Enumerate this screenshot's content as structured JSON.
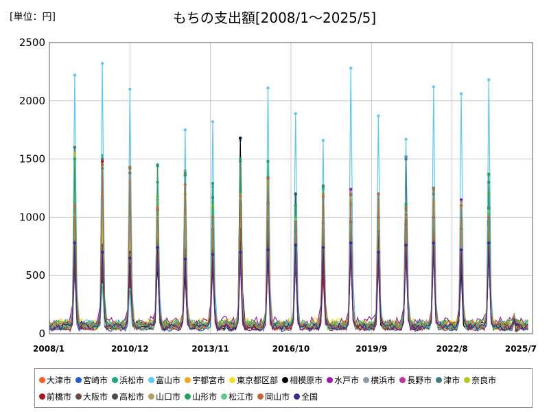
{
  "chart_data": {
    "type": "line",
    "title": "もちの支出額[2008/1～2025/5]",
    "unit_label": "[単位：円]",
    "ylim": [
      0,
      2500
    ],
    "yticks": [
      "0",
      "500",
      "1000",
      "1500",
      "2000",
      "2500"
    ],
    "xticks": [
      "2008/1",
      "2010/12",
      "2013/11",
      "2016/10",
      "2019/9",
      "2022/8",
      "2025/7"
    ],
    "grid": true,
    "legend_position": "bottom",
    "series": [
      {
        "name": "大津市",
        "color": "#ff5a1f",
        "peaks": [
          1200,
          1460,
          880,
          1070,
          750,
          860,
          730,
          800,
          920,
          1160,
          1200,
          800,
          920,
          950,
          560,
          1000
        ],
        "base": 60
      },
      {
        "name": "宮崎市",
        "color": "#1f5bd6",
        "peaks": [
          540,
          480,
          450,
          630,
          560,
          810,
          770,
          780,
          800,
          700,
          820,
          590,
          1520,
          780,
          520,
          720
        ],
        "base": 40
      },
      {
        "name": "浜松市",
        "color": "#1aa878",
        "peaks": [
          1600,
          1530,
          1050,
          1440,
          930,
          1260,
          1160,
          1330,
          1190,
          1240,
          1120,
          860,
          1080,
          1230,
          660,
          1360
        ],
        "base": 70
      },
      {
        "name": "富山市",
        "color": "#5cc8f0",
        "peaks": [
          2220,
          2320,
          2100,
          1450,
          1750,
          1820,
          1660,
          2110,
          1890,
          1660,
          2280,
          1870,
          1670,
          2120,
          2060,
          2180
        ],
        "base": 80
      },
      {
        "name": "宇都宮市",
        "color": "#f5a623",
        "peaks": [
          1000,
          960,
          780,
          900,
          700,
          780,
          650,
          780,
          760,
          1080,
          1100,
          780,
          820,
          1120,
          740,
          1020
        ],
        "base": 60
      },
      {
        "name": "東京都区部",
        "color": "#f0e020",
        "peaks": [
          1500,
          1200,
          900,
          1180,
          1160,
          1100,
          1050,
          1300,
          1000,
          1200,
          1200,
          1100,
          1000,
          1100,
          1120,
          1000
        ],
        "base": 90
      },
      {
        "name": "相模原市",
        "color": "#000000",
        "peaks": [
          600,
          520,
          480,
          600,
          500,
          780,
          1680,
          790,
          600,
          610,
          680,
          600,
          880,
          740,
          560,
          700
        ],
        "base": 70
      },
      {
        "name": "水戸市",
        "color": "#9b1aa8",
        "peaks": [
          700,
          720,
          600,
          800,
          650,
          900,
          800,
          1120,
          880,
          950,
          1240,
          1000,
          900,
          1000,
          1150,
          1080
        ],
        "base": 100
      },
      {
        "name": "横浜市",
        "color": "#8a9aa8",
        "peaks": [
          1300,
          1180,
          1000,
          1150,
          1400,
          1000,
          1150,
          1300,
          1000,
          1260,
          1200,
          1200,
          1000,
          1250,
          1130,
          1000
        ],
        "base": 80
      },
      {
        "name": "長野市",
        "color": "#c0339a",
        "peaks": [
          650,
          600,
          560,
          680,
          600,
          640,
          600,
          700,
          640,
          680,
          700,
          640,
          680,
          700,
          640,
          700
        ],
        "base": 60
      },
      {
        "name": "津市",
        "color": "#3f7a7f",
        "peaks": [
          1600,
          1500,
          1380,
          1300,
          1360,
          1170,
          1480,
          1340,
          1200,
          1270,
          1100,
          1200,
          1500,
          1250,
          1100,
          1300
        ],
        "base": 70
      },
      {
        "name": "奈良市",
        "color": "#b9c41e",
        "peaks": [
          1550,
          900,
          1430,
          1180,
          1200,
          1080,
          1200,
          1280,
          1000,
          1180,
          1150,
          1050,
          1000,
          1050,
          1100,
          1200
        ],
        "base": 80
      },
      {
        "name": "前橋市",
        "color": "#b01020",
        "peaks": [
          710,
          1480,
          460,
          1060,
          620,
          560,
          880,
          640,
          780,
          500,
          760,
          620,
          780,
          830,
          660,
          940
        ],
        "base": 50
      },
      {
        "name": "大阪市",
        "color": "#6b4a3a",
        "peaks": [
          620,
          560,
          580,
          700,
          660,
          680,
          700,
          660,
          760,
          690,
          720,
          660,
          720,
          700,
          640,
          720
        ],
        "base": 60
      },
      {
        "name": "高松市",
        "color": "#4a4a4a",
        "peaks": [
          800,
          760,
          700,
          800,
          720,
          1000,
          900,
          960,
          1200,
          900,
          960,
          880,
          940,
          1000,
          900,
          960
        ],
        "base": 60
      },
      {
        "name": "山口市",
        "color": "#b5a25a",
        "peaks": [
          1400,
          1200,
          1300,
          1100,
          1200,
          1000,
          1200,
          1300,
          1000,
          1200,
          1100,
          1150,
          1000,
          1200,
          1100,
          1200
        ],
        "base": 80
      },
      {
        "name": "山形市",
        "color": "#23a35a",
        "peaks": [
          1500,
          1420,
          1420,
          1450,
          1380,
          1290,
          1500,
          1480,
          1100,
          1260,
          1190,
          1200,
          1110,
          1200,
          1100,
          1370
        ],
        "base": 80
      },
      {
        "name": "松江市",
        "color": "#5fc88a",
        "peaks": [
          1020,
          420,
          380,
          1000,
          1010,
          920,
          1160,
          1300,
          980,
          1050,
          1100,
          1100,
          1040,
          1100,
          920,
          1050
        ],
        "base": 70
      },
      {
        "name": "岡山市",
        "color": "#c06a3a",
        "peaks": [
          1100,
          1450,
          1430,
          1080,
          1280,
          1000,
          1180,
          1330,
          960,
          1180,
          1200,
          1200,
          1080,
          1240,
          1100,
          1000
        ],
        "base": 70
      },
      {
        "name": "全国",
        "color": "#3a2a9a",
        "peaks": [
          780,
          700,
          650,
          740,
          640,
          680,
          700,
          720,
          760,
          740,
          780,
          700,
          760,
          780,
          720,
          780
        ],
        "base": 60
      }
    ]
  }
}
